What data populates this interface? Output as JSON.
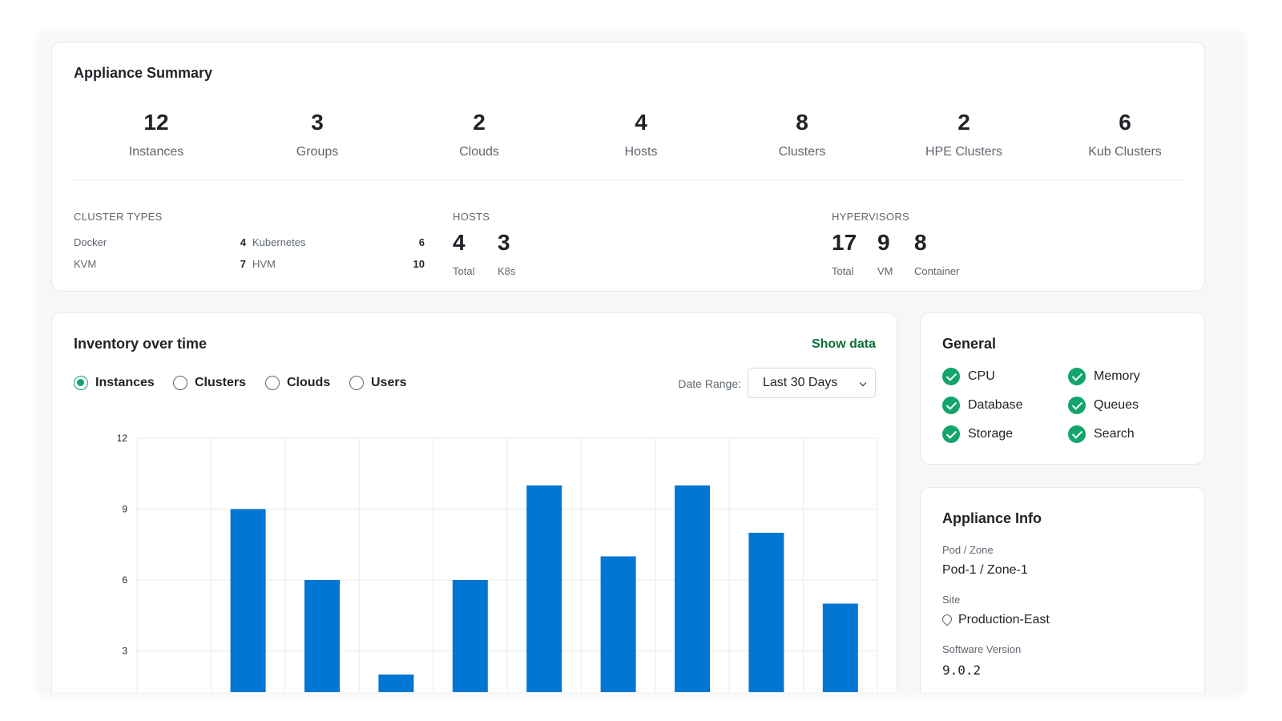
{
  "summary": {
    "title": "Appliance Summary",
    "stats": [
      {
        "value": "12",
        "label": "Instances"
      },
      {
        "value": "3",
        "label": "Groups"
      },
      {
        "value": "2",
        "label": "Clouds"
      },
      {
        "value": "4",
        "label": "Hosts"
      },
      {
        "value": "8",
        "label": "Clusters"
      },
      {
        "value": "2",
        "label": "HPE Clusters"
      },
      {
        "value": "6",
        "label": "Kub Clusters"
      }
    ],
    "cluster_types": {
      "heading": "CLUSTER TYPES",
      "rows": [
        {
          "name": "Docker",
          "count": "4"
        },
        {
          "name": "Kubernetes",
          "count": "6"
        },
        {
          "name": "KVM",
          "count": "7"
        },
        {
          "name": "HVM",
          "count": "10"
        }
      ]
    },
    "hosts": {
      "heading": "HOSTS",
      "items": [
        {
          "value": "4",
          "label": "Total"
        },
        {
          "value": "3",
          "label": "K8s"
        }
      ]
    },
    "hypervisors": {
      "heading": "HYPERVISORS",
      "items": [
        {
          "value": "17",
          "label": "Total"
        },
        {
          "value": "9",
          "label": "VM"
        },
        {
          "value": "8",
          "label": "Container"
        }
      ]
    }
  },
  "inventory": {
    "title": "Inventory over time",
    "show_data": "Show data",
    "radios": [
      {
        "label": "Instances",
        "selected": true
      },
      {
        "label": "Clusters",
        "selected": false
      },
      {
        "label": "Clouds",
        "selected": false
      },
      {
        "label": "Users",
        "selected": false
      }
    ],
    "date_range_label": "Date Range:",
    "date_range_value": "Last 30 Days"
  },
  "chart_data": {
    "type": "bar",
    "categories": [
      "",
      "",
      "",
      "",
      "",
      "",
      "",
      "",
      "",
      ""
    ],
    "values": [
      1,
      9,
      6,
      2,
      6,
      10,
      7,
      10,
      8,
      5
    ],
    "title": "",
    "xlabel": "",
    "ylabel": "",
    "ylim": [
      0,
      12
    ],
    "yticks": [
      0,
      3,
      6,
      9,
      12
    ],
    "grid": true,
    "bar_color": "#0176d3"
  },
  "general": {
    "title": "General",
    "items": [
      "CPU",
      "Memory",
      "Database",
      "Queues",
      "Storage",
      "Search"
    ],
    "status_color": "#13a46b"
  },
  "info": {
    "title": "Appliance Info",
    "pod_label": "Pod / Zone",
    "pod_value": "Pod-1 / Zone-1",
    "site_label": "Site",
    "site_value": "Production-East",
    "version_label": "Software Version",
    "version_value": "9.0.2"
  }
}
